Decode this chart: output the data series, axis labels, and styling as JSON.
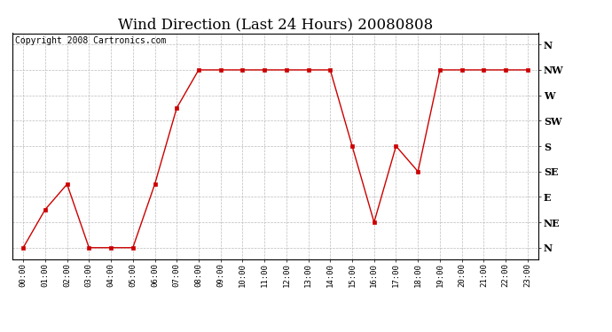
{
  "title": "Wind Direction (Last 24 Hours) 20080808",
  "copyright": "Copyright 2008 Cartronics.com",
  "hours": [
    "00:00",
    "01:00",
    "02:00",
    "03:00",
    "04:00",
    "05:00",
    "06:00",
    "07:00",
    "08:00",
    "09:00",
    "10:00",
    "11:00",
    "12:00",
    "13:00",
    "14:00",
    "15:00",
    "16:00",
    "17:00",
    "18:00",
    "19:00",
    "20:00",
    "21:00",
    "22:00",
    "23:00"
  ],
  "wind_dirs": [
    0,
    67.5,
    112.5,
    0,
    0,
    0,
    112.5,
    247.5,
    315,
    315,
    315,
    315,
    315,
    315,
    315,
    180,
    45,
    180,
    135,
    315,
    315,
    315,
    315,
    315
  ],
  "yticks": [
    0,
    45,
    90,
    135,
    180,
    225,
    270,
    315,
    360
  ],
  "ytick_labels": [
    "N",
    "NE",
    "E",
    "SE",
    "S",
    "SW",
    "W",
    "NW",
    "N"
  ],
  "line_color": "#cc0000",
  "marker": "s",
  "marker_size": 2.5,
  "bg_color": "#ffffff",
  "plot_bg_color": "#ffffff",
  "grid_color": "#bbbbbb",
  "title_fontsize": 12,
  "copyright_fontsize": 7,
  "border_color": "#000000"
}
